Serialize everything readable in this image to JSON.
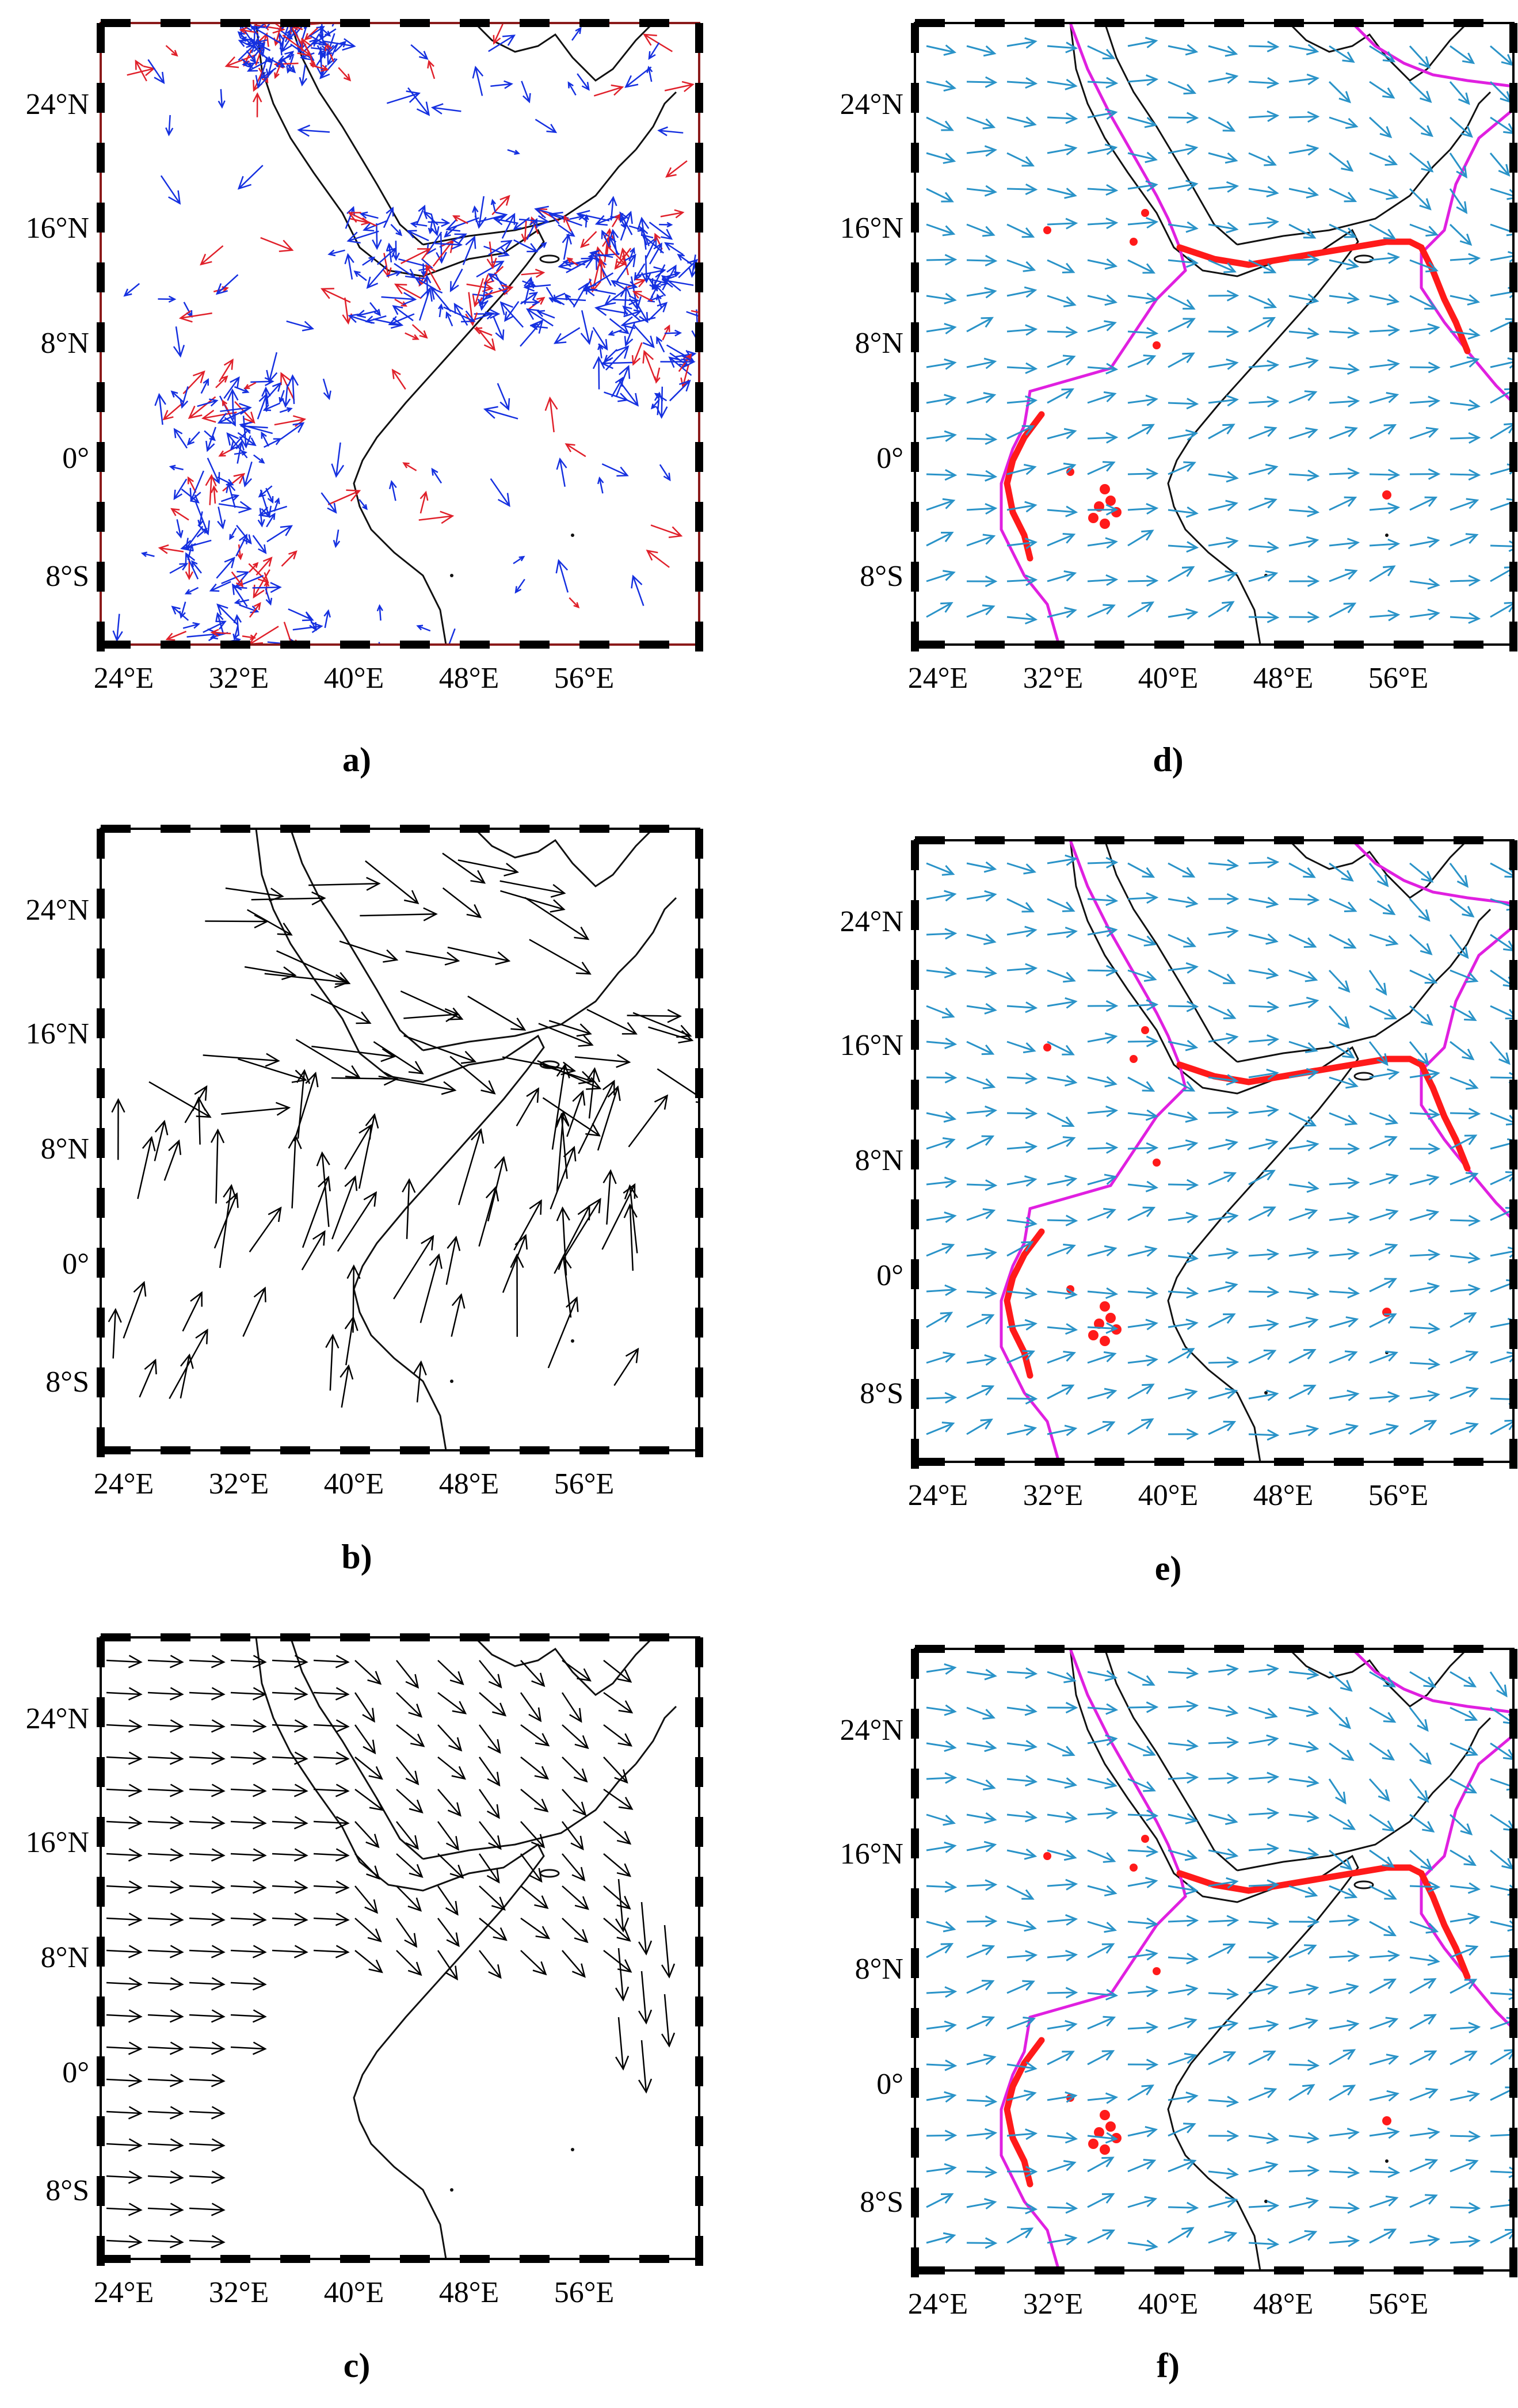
{
  "figure": {
    "panels": [
      {
        "id": "a",
        "caption": "a)",
        "lon_ticks": [
          "24°E",
          "32°E",
          "40°E",
          "48°E",
          "56°E"
        ],
        "lat_ticks": [
          "24°N",
          "16°N",
          "8°N",
          "0°",
          "8°S"
        ],
        "frame_color": "#8b1a1a",
        "vector_style": "gps",
        "vector_colors": [
          "#1530e0",
          "#e0202a"
        ],
        "show_plates": false
      },
      {
        "id": "b",
        "caption": "b)",
        "lon_ticks": [
          "24°E",
          "32°E",
          "40°E",
          "48°E",
          "56°E"
        ],
        "lat_ticks": [
          "24°N",
          "16°N",
          "8°N",
          "0°",
          "8°S"
        ],
        "frame_color": "#000000",
        "vector_style": "sparse",
        "vector_colors": [
          "#000000"
        ],
        "show_plates": false
      },
      {
        "id": "c",
        "caption": "c)",
        "lon_ticks": [
          "24°E",
          "32°E",
          "40°E",
          "48°E",
          "56°E"
        ],
        "lat_ticks": [
          "24°N",
          "16°N",
          "8°N",
          "0°",
          "8°S"
        ],
        "frame_color": "#000000",
        "vector_style": "regular",
        "vector_colors": [
          "#000000"
        ],
        "show_plates": false
      },
      {
        "id": "d",
        "caption": "d)",
        "lon_ticks": [
          "24°E",
          "32°E",
          "40°E",
          "48°E",
          "56°E"
        ],
        "lat_ticks": [
          "24°N",
          "16°N",
          "8°N",
          "0°",
          "8°S"
        ],
        "frame_color": "#000000",
        "vector_style": "grid",
        "vector_colors": [
          "#2a93c8"
        ],
        "show_plates": true,
        "plate_color": "#e020e0",
        "event_color": "#ff1a1a"
      },
      {
        "id": "e",
        "caption": "e)",
        "lon_ticks": [
          "24°E",
          "32°E",
          "40°E",
          "48°E",
          "56°E"
        ],
        "lat_ticks": [
          "24°N",
          "16°N",
          "8°N",
          "0°",
          "8°S"
        ],
        "frame_color": "#000000",
        "vector_style": "grid",
        "vector_colors": [
          "#2a93c8"
        ],
        "show_plates": true,
        "plate_color": "#e020e0",
        "event_color": "#ff1a1a"
      },
      {
        "id": "f",
        "caption": "f)",
        "lon_ticks": [
          "24°E",
          "32°E",
          "40°E",
          "48°E",
          "56°E"
        ],
        "lat_ticks": [
          "24°N",
          "16°N",
          "8°N",
          "0°",
          "8°S"
        ],
        "frame_color": "#000000",
        "vector_style": "grid",
        "vector_colors": [
          "#2a93c8"
        ],
        "show_plates": true,
        "plate_color": "#e020e0",
        "event_color": "#ff1a1a"
      }
    ]
  }
}
